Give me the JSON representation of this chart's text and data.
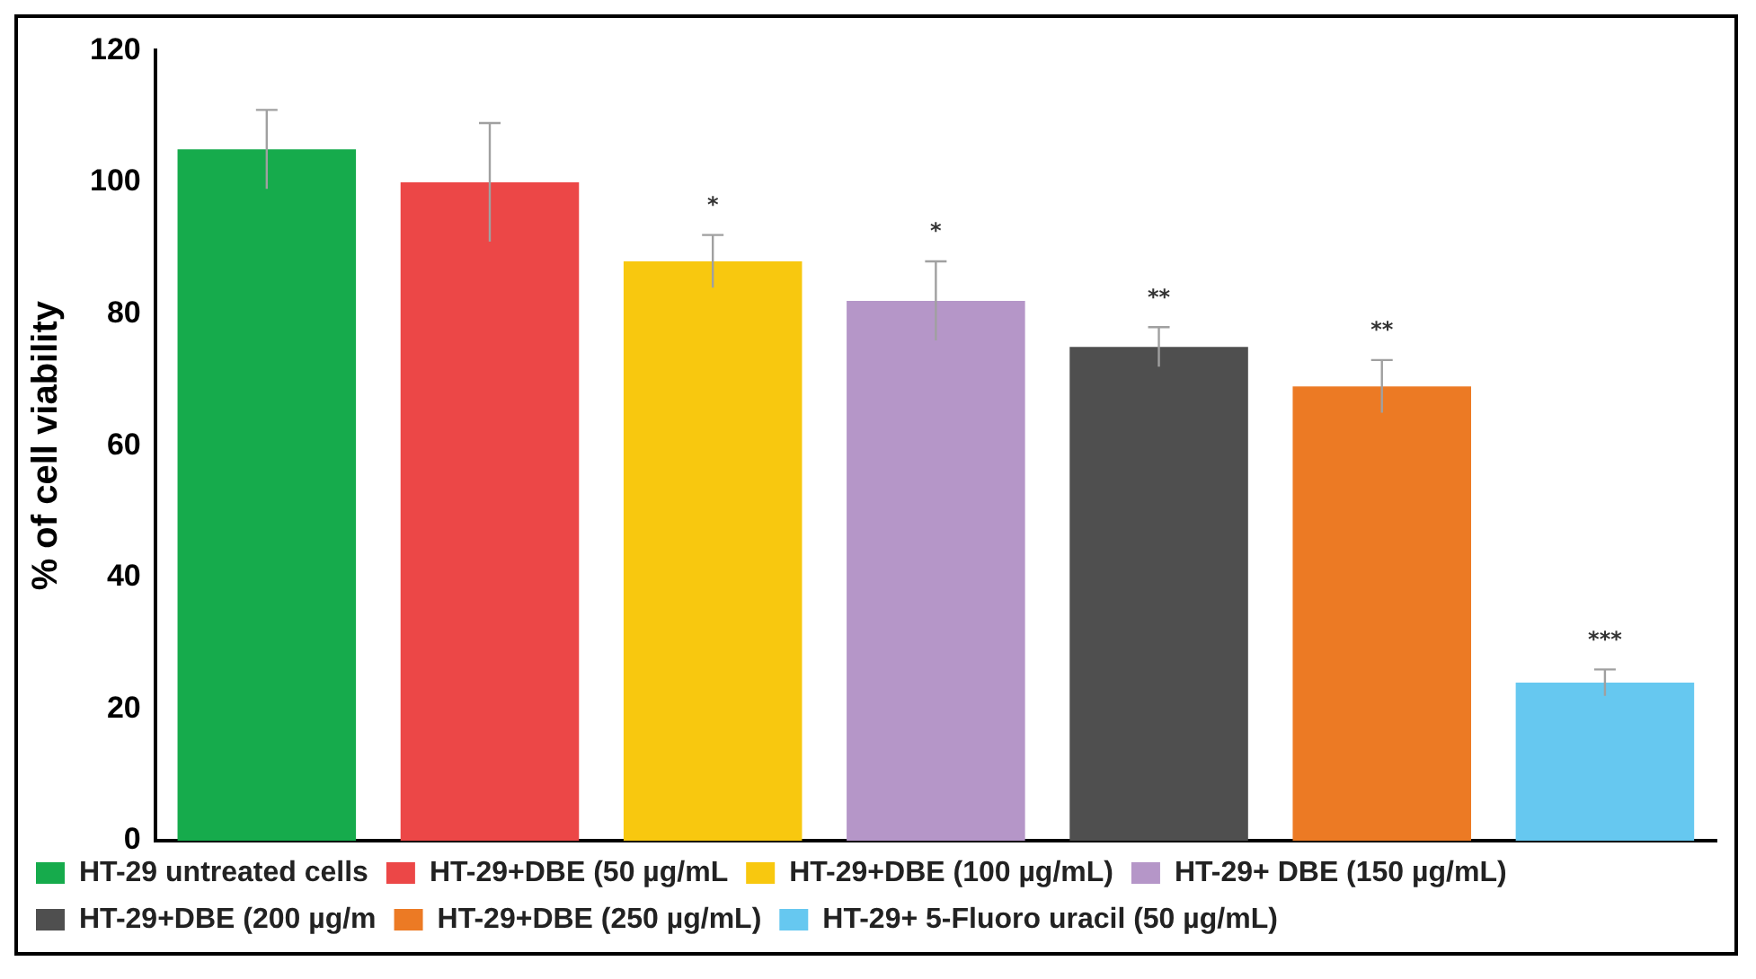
{
  "chart_data": {
    "type": "bar",
    "ylabel": "% of cell viability",
    "categories": [
      null,
      null,
      null,
      null,
      null,
      null,
      null
    ],
    "series": [
      {
        "name": "HT-29 untreated cells",
        "color": "#16ab4c",
        "values": [
          105,
          null,
          null,
          null,
          null,
          null,
          null
        ],
        "errors": [
          6,
          null,
          null,
          null,
          null,
          null,
          null
        ]
      },
      {
        "name": "HT-29+DBE (50 µg/mL",
        "color": "#ec4747",
        "values": [
          null,
          100,
          null,
          null,
          null,
          null,
          null
        ],
        "errors": [
          null,
          9,
          null,
          null,
          null,
          null,
          null
        ]
      },
      {
        "name": "HT-29+DBE (100 µg/mL)",
        "color": "#f8c80f",
        "values": [
          null,
          null,
          88,
          null,
          null,
          null,
          null
        ],
        "errors": [
          null,
          null,
          4,
          null,
          null,
          null,
          null
        ]
      },
      {
        "name": "HT-29+ DBE (150 µg/mL)",
        "color": "#b596c8",
        "values": [
          null,
          null,
          null,
          82,
          null,
          null,
          null
        ],
        "errors": [
          null,
          null,
          null,
          6,
          null,
          null,
          null
        ]
      },
      {
        "name": "HT-29+DBE (200 µg/m",
        "color": "#4f4f4f",
        "values": [
          null,
          null,
          null,
          null,
          75,
          null,
          null
        ],
        "errors": [
          null,
          null,
          null,
          null,
          3,
          null,
          null
        ]
      },
      {
        "name": "HT-29+DBE (250 µg/mL)",
        "color": "#ec7a24",
        "values": [
          null,
          null,
          null,
          null,
          null,
          69,
          null
        ],
        "errors": [
          null,
          null,
          null,
          null,
          null,
          4,
          null
        ]
      },
      {
        "name": "HT-29+ 5-Fluoro uracil (50 µg/mL)",
        "color": "#66c8f0",
        "values": [
          null,
          null,
          null,
          null,
          null,
          null,
          24
        ],
        "errors": [
          null,
          null,
          null,
          null,
          null,
          null,
          2
        ]
      }
    ],
    "annotations": [
      "*",
      "*",
      "**",
      "**",
      "***"
    ],
    "ylim": [
      0,
      120
    ],
    "yticks": [
      0,
      20,
      40,
      60,
      80,
      100,
      120
    ],
    "grid": false,
    "legend": "bottom"
  }
}
